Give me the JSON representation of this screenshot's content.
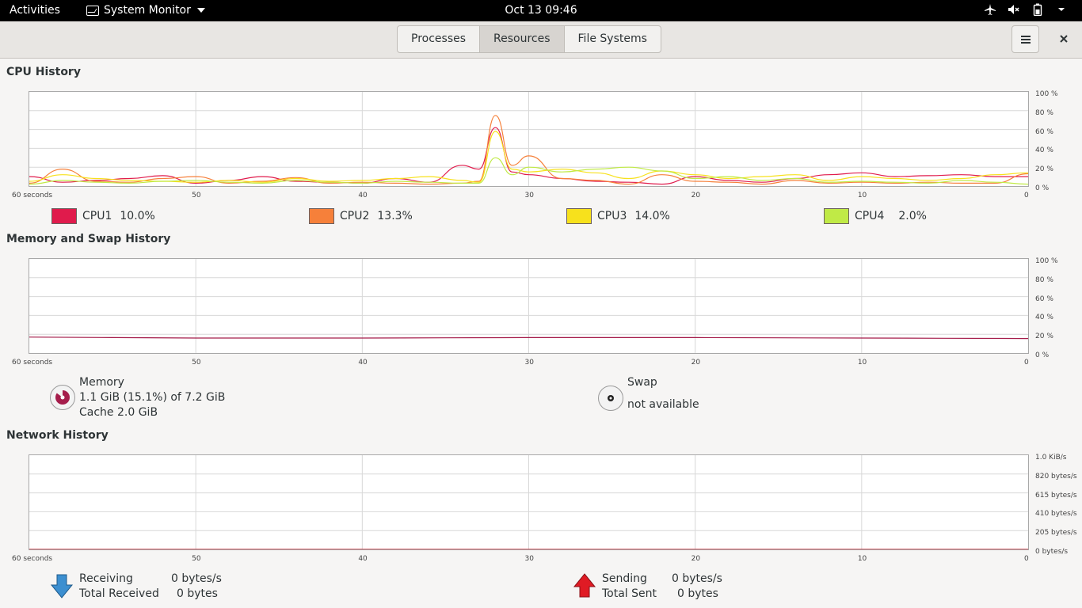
{
  "topbar": {
    "activities": "Activities",
    "app_name": "System Monitor",
    "clock": "Oct 13  09:46",
    "tray_icons": [
      "airplane-icon",
      "volume-muted-icon",
      "battery-icon",
      "power-menu-icon"
    ]
  },
  "tabs": [
    {
      "label": "Processes"
    },
    {
      "label": "Resources",
      "active": true
    },
    {
      "label": "File Systems"
    }
  ],
  "cpu": {
    "title": "CPU History",
    "y_ticks": [
      "100 %",
      "80 %",
      "60 %",
      "40 %",
      "20 %",
      "0 %"
    ],
    "x_ticks": [
      "60 seconds",
      "50",
      "40",
      "30",
      "20",
      "10",
      "0"
    ],
    "legend": [
      {
        "name": "CPU1",
        "value": "10.0%",
        "color": "#e01b4c"
      },
      {
        "name": "CPU2",
        "value": "13.3%",
        "color": "#f6803a"
      },
      {
        "name": "CPU3",
        "value": "14.0%",
        "color": "#f7e11c"
      },
      {
        "name": "CPU4",
        "value": "2.0%",
        "color": "#c0ea46"
      }
    ]
  },
  "memory": {
    "title": "Memory and Swap History",
    "y_ticks": [
      "100 %",
      "80 %",
      "60 %",
      "40 %",
      "20 %",
      "0 %"
    ],
    "x_ticks": [
      "60 seconds",
      "50",
      "40",
      "30",
      "20",
      "10",
      "0"
    ],
    "memory_label": "Memory",
    "memory_usage": "1.1 GiB (15.1%) of 7.2 GiB",
    "memory_cache": "Cache 2.0 GiB",
    "memory_color": "#a51d4b",
    "swap_label": "Swap",
    "swap_value": "not available"
  },
  "network": {
    "title": "Network History",
    "y_ticks": [
      "1.0 KiB/s",
      "820 bytes/s",
      "615 bytes/s",
      "410 bytes/s",
      "205 bytes/s",
      "0 bytes/s"
    ],
    "x_ticks": [
      "60 seconds",
      "50",
      "40",
      "30",
      "20",
      "10",
      "0"
    ],
    "receiving_label": "Receiving",
    "receiving_value": "0 bytes/s",
    "total_received_label": "Total Received",
    "total_received_value": "0 bytes",
    "sending_label": "Sending",
    "sending_value": "0 bytes/s",
    "total_sent_label": "Total Sent",
    "total_sent_value": "0 bytes",
    "receive_color": "#2a7ab0",
    "send_color": "#e01b24"
  },
  "chart_data": [
    {
      "type": "line",
      "title": "CPU History",
      "x": [
        60,
        58,
        56,
        54,
        52,
        50,
        48,
        46,
        44,
        42,
        40,
        38,
        36,
        34,
        33,
        32,
        31,
        30,
        28,
        26,
        24,
        22,
        20,
        18,
        16,
        14,
        12,
        10,
        8,
        6,
        4,
        2,
        0
      ],
      "xlim": [
        60,
        0
      ],
      "ylim": [
        0,
        100
      ],
      "series": [
        {
          "name": "CPU1",
          "color": "#e01b4c",
          "values": [
            10,
            4,
            6,
            8,
            11,
            3,
            6,
            10,
            5,
            4,
            3,
            8,
            4,
            22,
            18,
            62,
            15,
            12,
            8,
            5,
            4,
            2,
            10,
            6,
            4,
            8,
            12,
            14,
            10,
            11,
            12,
            10,
            10
          ]
        },
        {
          "name": "CPU2",
          "color": "#f6803a",
          "values": [
            3,
            18,
            5,
            4,
            8,
            10,
            3,
            5,
            9,
            3,
            4,
            3,
            2,
            3,
            5,
            75,
            22,
            32,
            8,
            6,
            2,
            12,
            5,
            4,
            2,
            6,
            3,
            4,
            3,
            4,
            3,
            3,
            13
          ]
        },
        {
          "name": "CPU3",
          "color": "#f7e11c",
          "values": [
            5,
            12,
            8,
            6,
            5,
            4,
            6,
            4,
            8,
            5,
            6,
            8,
            10,
            6,
            4,
            58,
            18,
            15,
            18,
            14,
            8,
            16,
            12,
            8,
            10,
            12,
            6,
            10,
            8,
            6,
            8,
            12,
            14
          ]
        },
        {
          "name": "CPU4",
          "color": "#c0ea46",
          "values": [
            2,
            6,
            4,
            3,
            5,
            6,
            4,
            3,
            6,
            4,
            3,
            5,
            4,
            3,
            3,
            30,
            12,
            20,
            15,
            18,
            20,
            16,
            8,
            10,
            6,
            8,
            4,
            5,
            4,
            3,
            6,
            4,
            2
          ]
        }
      ]
    },
    {
      "type": "line",
      "title": "Memory and Swap History",
      "x": [
        60,
        50,
        40,
        30,
        20,
        10,
        0
      ],
      "xlim": [
        60,
        0
      ],
      "ylim": [
        0,
        100
      ],
      "series": [
        {
          "name": "Memory",
          "color": "#a51d4b",
          "values": [
            17,
            16,
            16,
            16.5,
            16.5,
            16,
            15.5
          ]
        }
      ]
    },
    {
      "type": "line",
      "title": "Network History",
      "x": [
        60,
        50,
        40,
        30,
        20,
        10,
        0
      ],
      "xlim": [
        60,
        0
      ],
      "ylim": [
        0,
        1024
      ],
      "series": [
        {
          "name": "Receiving",
          "color": "#2a7ab0",
          "values": [
            0,
            0,
            0,
            0,
            0,
            0,
            0
          ]
        },
        {
          "name": "Sending",
          "color": "#e01b24",
          "values": [
            0,
            0,
            0,
            0,
            0,
            0,
            0
          ]
        }
      ]
    }
  ]
}
